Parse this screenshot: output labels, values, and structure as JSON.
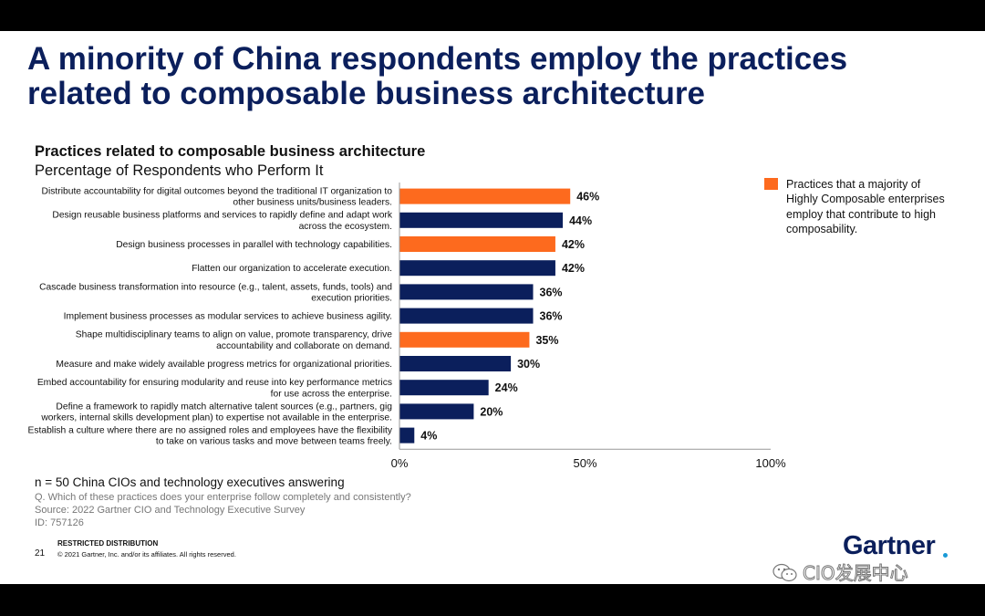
{
  "slide": {
    "title": "A minority of China respondents employ the practices related to composable business architecture",
    "subtitle1": "Practices related to composable business architecture",
    "subtitle2": "Percentage of Respondents who Perform It",
    "legend": "Practices that a majority of Highly Composable enterprises employ that contribute to high composability.",
    "n_note": "n = 50 China CIOs and technology executives answering",
    "question": "Q. Which of these practices does your enterprise follow completely and consistently?",
    "source": "Source: 2022 Gartner CIO and Technology Executive Survey",
    "id": "ID: 757126",
    "restricted": "RESTRICTED DISTRIBUTION",
    "page": "21",
    "copyright": "© 2021 Gartner, Inc. and/or its affiliates. All rights reserved.",
    "logo": "Gartner",
    "watermark": "CIO发展中心"
  },
  "colors": {
    "highlight": "#fd6a1e",
    "base": "#0b1f5c",
    "title": "#0b1f5c"
  },
  "chart_data": {
    "type": "bar",
    "orientation": "horizontal",
    "title": "Practices related to composable business architecture",
    "subtitle": "Percentage of Respondents who Perform It",
    "xlim": [
      0,
      100
    ],
    "x_ticks": [
      "0%",
      "50%",
      "100%"
    ],
    "grid": false,
    "legend_position": "right",
    "categories": [
      [
        "Distribute accountability for digital outcomes beyond the traditional IT organization to",
        "other business units/business leaders."
      ],
      [
        "Design reusable business platforms and services to rapidly define and adapt work",
        "across the ecosystem."
      ],
      [
        "Design business processes in parallel with technology capabilities."
      ],
      [
        "Flatten our organization to accelerate execution."
      ],
      [
        "Cascade business transformation into resource (e.g., talent, assets, funds, tools) and",
        "execution priorities."
      ],
      [
        "Implement business processes as modular services to achieve business agility."
      ],
      [
        "Shape multidisciplinary teams  to align on value, promote transparency, drive",
        "accountability and collaborate on demand."
      ],
      [
        "Measure and make widely available progress metrics for organizational priorities."
      ],
      [
        "Embed accountability for ensuring modularity and reuse into key performance metrics",
        "for use across the enterprise."
      ],
      [
        "Define a framework to rapidly match alternative talent sources (e.g., partners, gig",
        "workers, internal skills development plan) to expertise not available in the enterprise."
      ],
      [
        "Establish a culture where there are no assigned roles and employees have the flexibility",
        "to take on various tasks and move between teams freely."
      ]
    ],
    "values": [
      46,
      44,
      42,
      42,
      36,
      36,
      35,
      30,
      24,
      20,
      4
    ],
    "value_labels": [
      "46%",
      "44%",
      "42%",
      "42%",
      "36%",
      "36%",
      "35%",
      "30%",
      "24%",
      "20%",
      "4%"
    ],
    "highlighted": [
      true,
      false,
      true,
      false,
      false,
      false,
      true,
      false,
      false,
      false,
      false
    ]
  }
}
